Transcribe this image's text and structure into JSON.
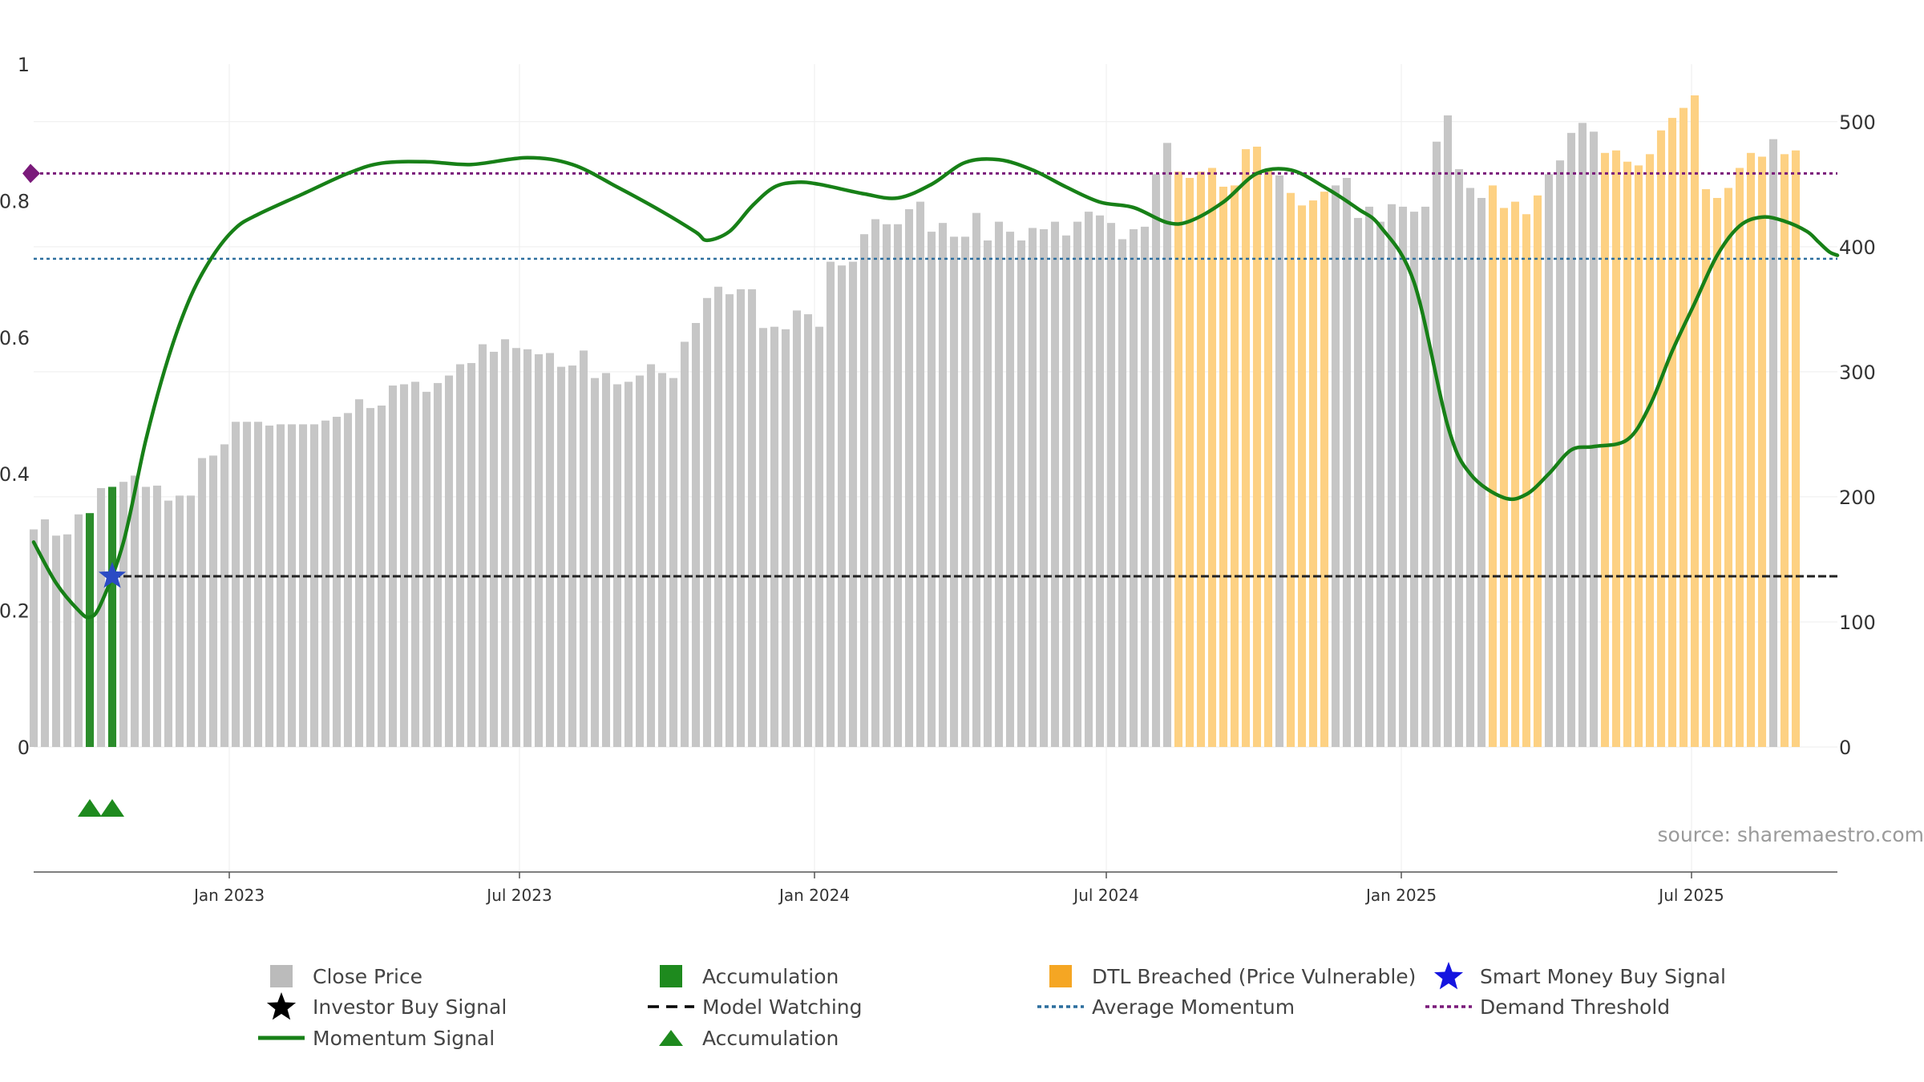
{
  "source_text": "source: sharemaestro.com",
  "legend": [
    {
      "key": "close",
      "label": "Close Price",
      "icon": "gray-square-icon",
      "color": "#bbbbbb"
    },
    {
      "key": "accum_bar",
      "label": "Accumulation",
      "icon": "green-square-icon",
      "color": "#1e8a1e"
    },
    {
      "key": "dtl",
      "label": "DTL Breached (Price Vulnerable)",
      "icon": "orange-square-icon",
      "color": "#f5a623"
    },
    {
      "key": "smart",
      "label": "Smart Money Buy Signal",
      "icon": "blue-star-icon",
      "color": "#1515e0"
    },
    {
      "key": "investor",
      "label": "Investor Buy Signal",
      "icon": "black-star-icon",
      "color": "#000000"
    },
    {
      "key": "watching",
      "label": "Model Watching",
      "icon": "dashed-line-icon",
      "color": "#000000"
    },
    {
      "key": "avg",
      "label": "Average Momentum",
      "icon": "dotted-blue-line-icon",
      "color": "#2c6e9e"
    },
    {
      "key": "demand",
      "label": "Demand Threshold",
      "icon": "dotted-purple-line-icon",
      "color": "#7a1a7a"
    },
    {
      "key": "momentum",
      "label": "Momentum Signal",
      "icon": "green-line-icon",
      "color": "#178017"
    },
    {
      "key": "accum_marker",
      "label": "Accumulation",
      "icon": "green-triangle-icon",
      "color": "#1e8a1e"
    }
  ],
  "chart_data": {
    "type": "bar",
    "title": "",
    "x_range": [
      "2022-09-01",
      "2025-09-30"
    ],
    "x_ticks": [
      {
        "date": "2023-01-01",
        "label": "Jan 2023"
      },
      {
        "date": "2023-07-01",
        "label": "Jul 2023"
      },
      {
        "date": "2024-01-01",
        "label": "Jan 2024"
      },
      {
        "date": "2024-07-01",
        "label": "Jul 2024"
      },
      {
        "date": "2025-01-01",
        "label": "Jan 2025"
      },
      {
        "date": "2025-07-01",
        "label": "Jul 2025"
      }
    ],
    "y_left": {
      "range": [
        0,
        1
      ],
      "ticks": [
        "0",
        "0.2",
        "0.4",
        "0.6",
        "0.8",
        "1"
      ]
    },
    "y_right": {
      "range": [
        0,
        546
      ],
      "ticks": [
        "0",
        "100",
        "200",
        "300",
        "400",
        "500"
      ]
    },
    "grid": true,
    "legend_position": "bottom",
    "series": [
      {
        "name": "Close Price",
        "axis": "right",
        "first_week": "2022-09-01",
        "interval_days": 7,
        "values": [
          174,
          182,
          169,
          170,
          186,
          187,
          207,
          208,
          212,
          217,
          208,
          209,
          197,
          201,
          201,
          231,
          233,
          242,
          260,
          260,
          260,
          257,
          258,
          258,
          258,
          258,
          261,
          264,
          267,
          278,
          271,
          273,
          289,
          290,
          292,
          284,
          291,
          297,
          306,
          307,
          322,
          316,
          326,
          319,
          318,
          314,
          315,
          304,
          305,
          317,
          295,
          299,
          290,
          292,
          297,
          306,
          299,
          295,
          324,
          339,
          359,
          368,
          362,
          366,
          366,
          335,
          336,
          334,
          349,
          346,
          336,
          388,
          385,
          388,
          410,
          422,
          418,
          418,
          430,
          436,
          412,
          419,
          408,
          408,
          427,
          405,
          420,
          412,
          405,
          415,
          414,
          420,
          409,
          420,
          428,
          425,
          419,
          406,
          414,
          416,
          458,
          483,
          460,
          455,
          460,
          463,
          448,
          449,
          478,
          480,
          462,
          457,
          443,
          433,
          437,
          444,
          449,
          455,
          423,
          432,
          420,
          434,
          432,
          428,
          432,
          484,
          505,
          462,
          447,
          439,
          449,
          431,
          436,
          426,
          441,
          458,
          469,
          491,
          499,
          492,
          475,
          477,
          468,
          465,
          474,
          493,
          503,
          511,
          521,
          446,
          439,
          447,
          463,
          475,
          472,
          486,
          474,
          477
        ]
      },
      {
        "name": "DTL Breached (Price Vulnerable)",
        "ranges": [
          [
            "2024-08-15",
            "2024-10-10"
          ],
          [
            "2024-10-24",
            "2024-11-14"
          ],
          [
            "2025-02-27",
            "2025-03-27"
          ],
          [
            "2025-05-08",
            "2025-08-14"
          ],
          [
            "2025-08-28",
            "2025-09-30"
          ]
        ]
      },
      {
        "name": "Accumulation",
        "ranges": [
          [
            "2022-10-06",
            "2022-10-06"
          ],
          [
            "2022-10-20",
            "2022-10-20"
          ]
        ]
      },
      {
        "name": "Momentum Signal",
        "axis": "left",
        "points": [
          [
            "2022-09-01",
            0.3
          ],
          [
            "2022-09-15",
            0.24
          ],
          [
            "2022-09-29",
            0.2
          ],
          [
            "2022-10-06",
            0.19
          ],
          [
            "2022-10-13",
            0.21
          ],
          [
            "2022-10-27",
            0.3
          ],
          [
            "2022-11-10",
            0.45
          ],
          [
            "2022-11-24",
            0.57
          ],
          [
            "2022-12-08",
            0.66
          ],
          [
            "2022-12-22",
            0.72
          ],
          [
            "2023-01-05",
            0.76
          ],
          [
            "2023-01-19",
            0.78
          ],
          [
            "2023-02-16",
            0.81
          ],
          [
            "2023-03-16",
            0.84
          ],
          [
            "2023-04-06",
            0.855
          ],
          [
            "2023-05-04",
            0.857
          ],
          [
            "2023-06-01",
            0.853
          ],
          [
            "2023-07-06",
            0.863
          ],
          [
            "2023-08-03",
            0.853
          ],
          [
            "2023-08-31",
            0.82
          ],
          [
            "2023-09-28",
            0.784
          ],
          [
            "2023-10-19",
            0.754
          ],
          [
            "2023-10-26",
            0.742
          ],
          [
            "2023-11-09",
            0.755
          ],
          [
            "2023-11-23",
            0.792
          ],
          [
            "2023-12-07",
            0.82
          ],
          [
            "2023-12-21",
            0.827
          ],
          [
            "2024-01-04",
            0.824
          ],
          [
            "2024-02-01",
            0.81
          ],
          [
            "2024-02-22",
            0.804
          ],
          [
            "2024-03-14",
            0.824
          ],
          [
            "2024-04-04",
            0.856
          ],
          [
            "2024-04-25",
            0.86
          ],
          [
            "2024-05-16",
            0.845
          ],
          [
            "2024-06-06",
            0.82
          ],
          [
            "2024-06-27",
            0.798
          ],
          [
            "2024-07-18",
            0.79
          ],
          [
            "2024-08-08",
            0.768
          ],
          [
            "2024-08-22",
            0.77
          ],
          [
            "2024-09-12",
            0.798
          ],
          [
            "2024-10-03",
            0.84
          ],
          [
            "2024-10-24",
            0.845
          ],
          [
            "2024-11-14",
            0.82
          ],
          [
            "2024-12-05",
            0.788
          ],
          [
            "2024-12-19",
            0.762
          ],
          [
            "2025-01-09",
            0.68
          ],
          [
            "2025-01-30",
            0.47
          ],
          [
            "2025-02-13",
            0.4
          ],
          [
            "2025-03-06",
            0.365
          ],
          [
            "2025-03-20",
            0.37
          ],
          [
            "2025-04-03",
            0.4
          ],
          [
            "2025-04-17",
            0.435
          ],
          [
            "2025-05-01",
            0.44
          ],
          [
            "2025-05-22",
            0.45
          ],
          [
            "2025-06-05",
            0.5
          ],
          [
            "2025-06-19",
            0.58
          ],
          [
            "2025-07-03",
            0.65
          ],
          [
            "2025-07-17",
            0.72
          ],
          [
            "2025-07-31",
            0.763
          ],
          [
            "2025-08-14",
            0.776
          ],
          [
            "2025-08-28",
            0.77
          ],
          [
            "2025-09-11",
            0.755
          ],
          [
            "2025-09-18",
            0.74
          ],
          [
            "2025-09-25",
            0.725
          ],
          [
            "2025-09-30",
            0.72
          ]
        ]
      },
      {
        "name": "Model Watching",
        "axis": "left",
        "value": 0.25,
        "x_start": "2022-10-20"
      },
      {
        "name": "Average Momentum",
        "axis": "left",
        "value": 0.715
      },
      {
        "name": "Demand Threshold",
        "axis": "left",
        "value": 0.84
      },
      {
        "name": "Smart Money Buy Signal",
        "points": [
          [
            "2022-10-20",
            0.25
          ]
        ]
      },
      {
        "name": "Accumulation",
        "points": [
          "2022-10-06",
          "2022-10-20"
        ]
      }
    ]
  }
}
